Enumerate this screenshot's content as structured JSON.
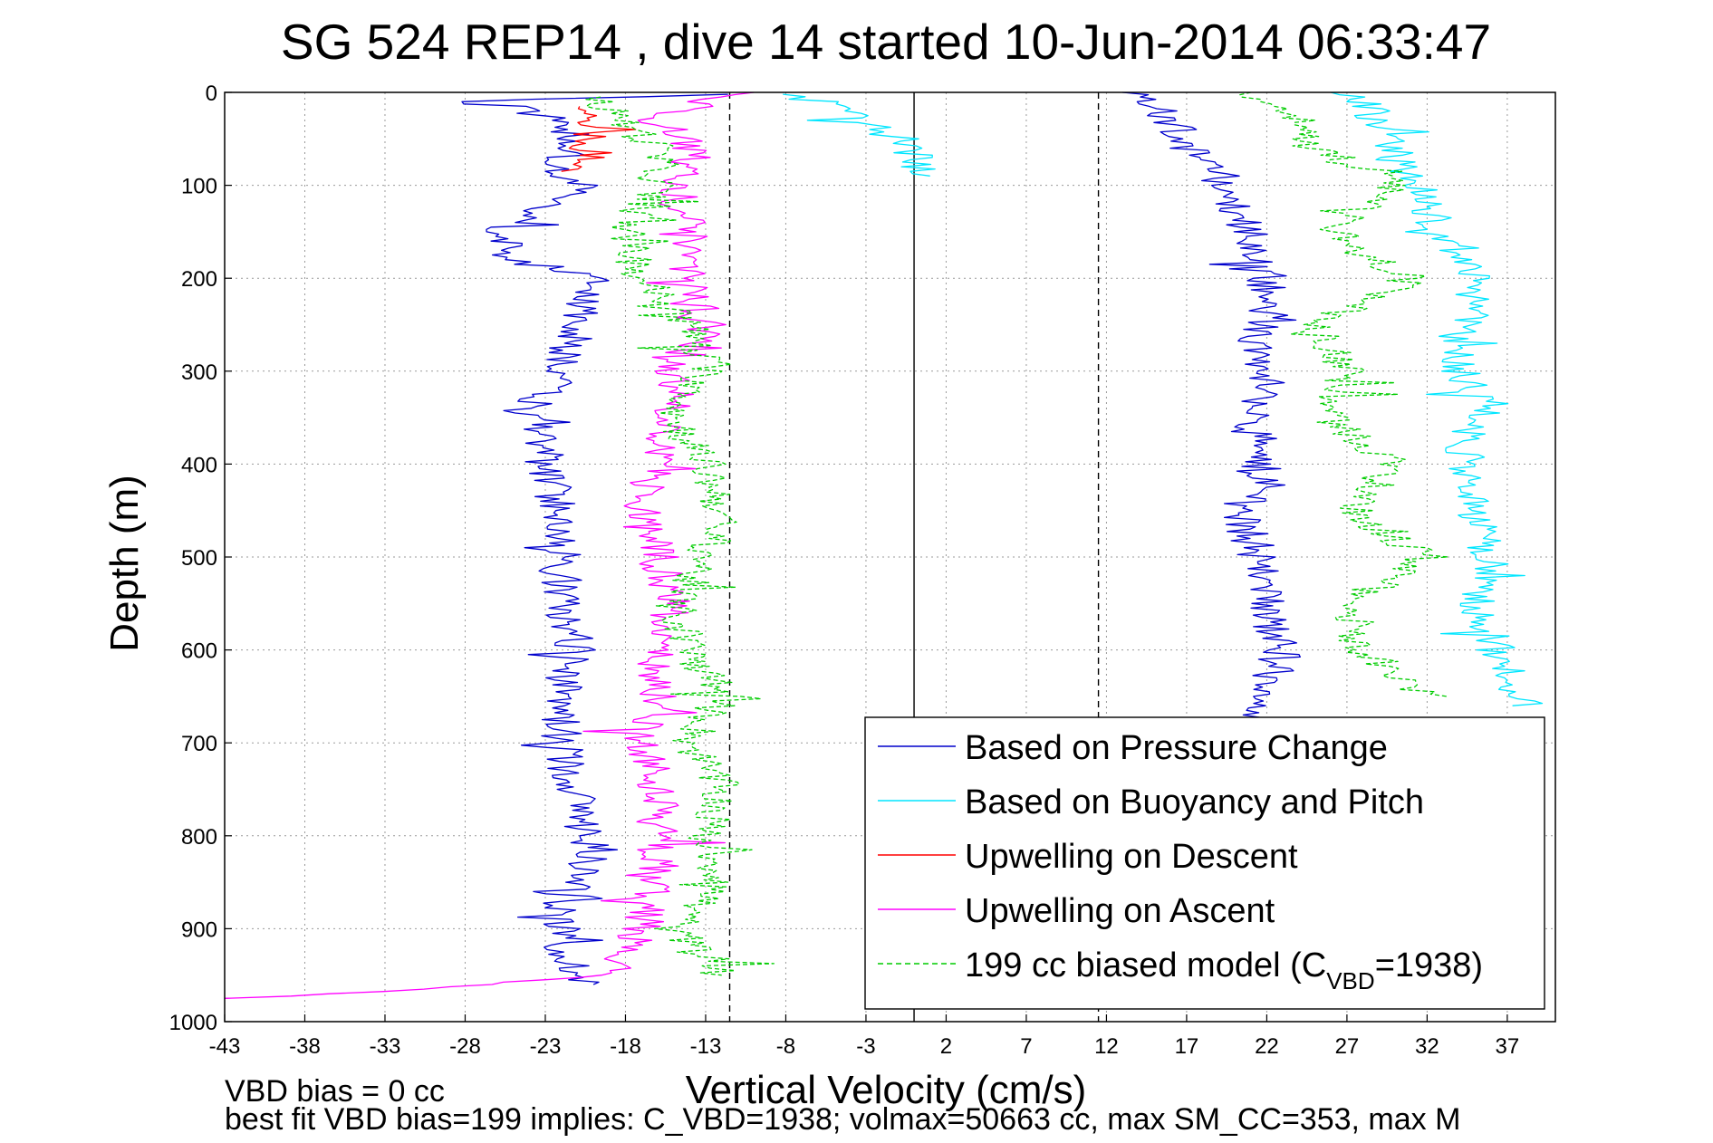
{
  "chart_data": {
    "type": "line",
    "title": "SG 524   REP14  , dive 14 started 10-Jun-2014 06:33:47",
    "xlabel": "Vertical Velocity (cm/s)",
    "ylabel": "Depth (m)",
    "xlim": [
      -43,
      40
    ],
    "ylim": [
      0,
      1000
    ],
    "y_reversed": true,
    "grid": true,
    "x_ticks": [
      "-43",
      "-38",
      "-33",
      "-28",
      "-23",
      "-18",
      "-13",
      "-8",
      "-3",
      "2",
      "7",
      "12",
      "17",
      "22",
      "27",
      "32",
      "37"
    ],
    "y_ticks": [
      "0",
      "100",
      "200",
      "300",
      "400",
      "500",
      "600",
      "700",
      "800",
      "900",
      "1000"
    ],
    "reference_lines": [
      {
        "x": 0,
        "style": "solid"
      },
      {
        "x": -11.5,
        "style": "dashed"
      },
      {
        "x": 11.5,
        "style": "dashed"
      }
    ],
    "legend_position": "bottom-right",
    "legend": [
      {
        "label": "Based on Pressure Change",
        "color": "#0000cc",
        "style": "solid"
      },
      {
        "label": "Based on Buoyancy and Pitch",
        "color": "#00e6ff",
        "style": "solid"
      },
      {
        "label": "Upwelling on Descent",
        "color": "#ff0000",
        "style": "solid"
      },
      {
        "label": "Upwelling on Ascent",
        "color": "#ff00ff",
        "style": "solid"
      },
      {
        "label_prefix": "199 cc biased model (C",
        "label_sub": "VBD",
        "label_suffix": "=1938)",
        "color": "#00cc00",
        "style": "dashed"
      }
    ],
    "series": [
      {
        "name": "Based on Pressure Change",
        "branch": "descent",
        "color": "#0000cc",
        "depth": [
          2,
          10,
          15,
          30,
          50,
          80,
          100,
          150,
          180,
          200,
          250,
          300,
          340,
          380,
          410,
          450,
          480,
          520,
          560,
          600,
          640,
          700,
          760,
          820,
          880,
          930,
          960
        ],
        "values": [
          -12,
          -29,
          -25,
          -22,
          -21,
          -22,
          -21,
          -26,
          -25,
          -20,
          -21,
          -22,
          -24,
          -23,
          -23,
          -22,
          -22,
          -22,
          -22,
          -21,
          -22,
          -22,
          -21,
          -20,
          -22,
          -22,
          -20
        ]
      },
      {
        "name": "Based on Pressure Change",
        "branch": "ascent",
        "color": "#0000cc",
        "depth": [
          960,
          900,
          850,
          800,
          750,
          700,
          670,
          640,
          600,
          560,
          520,
          480,
          450,
          420,
          380,
          350,
          320,
          280,
          240,
          200,
          160,
          120,
          90,
          60,
          30,
          10,
          0
        ],
        "values": [
          20,
          21,
          21,
          22,
          21,
          21,
          21,
          22,
          23,
          22,
          22,
          21,
          20,
          22,
          21,
          21,
          22,
          21,
          22,
          22,
          21,
          20,
          19,
          17,
          16,
          15,
          13
        ]
      },
      {
        "name": "Based on Buoyancy and Pitch",
        "branch": "descent",
        "color": "#00e6ff",
        "depth": [
          2,
          10,
          30,
          50,
          70,
          90
        ],
        "values": [
          -8,
          -6,
          -3,
          -1,
          0,
          1
        ]
      },
      {
        "name": "Based on Buoyancy and Pitch",
        "branch": "ascent",
        "color": "#00e6ff",
        "depth": [
          660,
          620,
          560,
          520,
          460,
          420,
          380,
          340,
          300,
          260,
          200,
          160,
          120,
          90,
          60,
          30,
          10,
          0
        ],
        "values": [
          38,
          37,
          35,
          36,
          35,
          35,
          34,
          36,
          34,
          34,
          35,
          33,
          32,
          31,
          30,
          29,
          28,
          26
        ]
      },
      {
        "name": "Upwelling on Descent",
        "color": "#ff0000",
        "depth": [
          15,
          25,
          35,
          45,
          55,
          65,
          75,
          85
        ],
        "values": [
          -20,
          -21,
          -21,
          -20,
          -21,
          -20,
          -21,
          -22
        ]
      },
      {
        "name": "Upwelling on Ascent",
        "color": "#ff00ff",
        "depth": [
          975,
          965,
          950,
          900,
          850,
          800,
          750,
          700,
          650,
          600,
          550,
          500,
          450,
          400,
          350,
          300,
          250,
          200,
          150,
          100,
          60,
          30,
          10,
          0
        ],
        "values": [
          -43,
          -30,
          -19,
          -17,
          -16,
          -16,
          -16,
          -17,
          -16,
          -16,
          -15,
          -16,
          -17,
          -16,
          -15,
          -15,
          -13,
          -14,
          -14,
          -15,
          -14,
          -16,
          -13,
          -10
        ]
      },
      {
        "name": "199 cc biased model (C_VBD=1938)",
        "branch": "descent",
        "color": "#00cc00",
        "depth": [
          5,
          20,
          60,
          100,
          150,
          200,
          250,
          300,
          350,
          400,
          450,
          500,
          550,
          600,
          650,
          700,
          750,
          800,
          850,
          900,
          950
        ],
        "values": [
          -20,
          -19,
          -16,
          -16,
          -18,
          -17,
          -14,
          -13,
          -15,
          -13,
          -12,
          -13,
          -15,
          -14,
          -12,
          -14,
          -12,
          -13,
          -12,
          -15,
          -12
        ]
      },
      {
        "name": "199 cc biased model (C_VBD=1938)",
        "branch": "ascent",
        "color": "#00cc00",
        "depth": [
          650,
          600,
          550,
          500,
          450,
          400,
          350,
          300,
          250,
          200,
          150,
          100,
          60,
          30,
          10,
          0
        ],
        "values": [
          32,
          28,
          27,
          32,
          27,
          30,
          26,
          27,
          25,
          31,
          26,
          30,
          25,
          24,
          22,
          21
        ]
      }
    ]
  },
  "footer": {
    "line1": "VBD bias = 0 cc",
    "line2": "best fit VBD bias=199 implies: C_VBD=1938; volmax=50663 cc, max SM_CC=353, max M"
  }
}
